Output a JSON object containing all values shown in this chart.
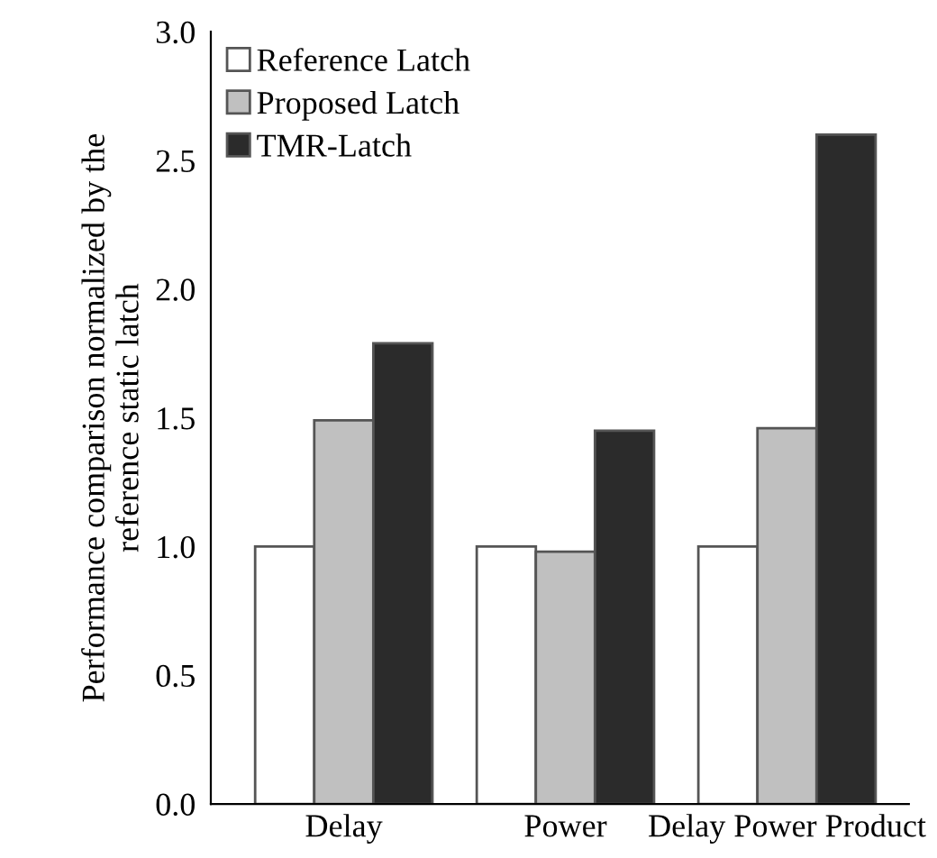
{
  "chart_data": {
    "type": "bar",
    "ylabel": "Performance comparison normalized by the\nreference static latch",
    "categories": [
      "Delay",
      "Power",
      "Delay Power Product"
    ],
    "series": [
      {
        "name": "Reference Latch",
        "color": "#ffffff",
        "values": [
          1.0,
          1.0,
          1.0
        ]
      },
      {
        "name": "Proposed Latch",
        "color": "#c0c0c0",
        "values": [
          1.49,
          0.98,
          1.46
        ]
      },
      {
        "name": "TMR-Latch",
        "color": "#2b2b2b",
        "values": [
          1.79,
          1.45,
          2.6
        ]
      }
    ],
    "ylim": [
      0,
      3.0
    ],
    "yticks": [
      {
        "value": 0,
        "label": "0.0"
      },
      {
        "value": 0.5,
        "label": "0.5"
      },
      {
        "value": 1.0,
        "label": "1.0"
      },
      {
        "value": 1.5,
        "label": "1.5"
      },
      {
        "value": 2.0,
        "label": "2.0"
      },
      {
        "value": 2.5,
        "label": "2.5"
      },
      {
        "value": 3.0,
        "label": "3.0"
      }
    ],
    "grid": false,
    "legend": "top left"
  }
}
